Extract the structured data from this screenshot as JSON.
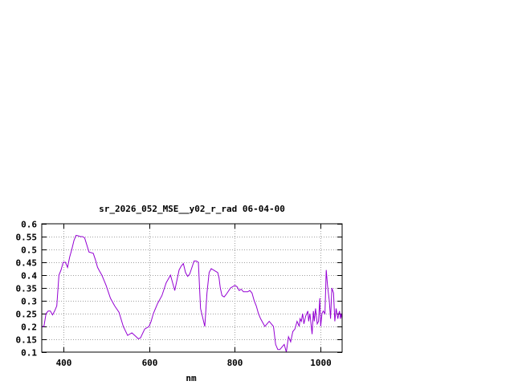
{
  "chart_data": {
    "type": "line",
    "title": "sr_2026_052_MSE__y02_r_rad 06-04-00",
    "xlabel": "nm",
    "ylabel": "",
    "xlim": [
      350,
      1050
    ],
    "ylim": [
      0.1,
      0.6
    ],
    "grid": true,
    "legend": "none",
    "line_color": "#9400d3",
    "x_ticks": [
      400,
      600,
      800,
      1000
    ],
    "x_tick_labels": [
      "400",
      "600",
      "800",
      "1000"
    ],
    "y_ticks": [
      0.1,
      0.15,
      0.2,
      0.25,
      0.3,
      0.35,
      0.4,
      0.45,
      0.5,
      0.55,
      0.6
    ],
    "y_tick_labels": [
      "0.1",
      "0.15",
      "0.2",
      "0.25",
      "0.3",
      "0.35",
      "0.4",
      "0.45",
      "0.5",
      "0.55",
      "0.6"
    ],
    "series": [
      {
        "x": [
          350,
          355,
          360,
          365,
          370,
          375,
          380,
          385,
          390,
          395,
          400,
          405,
          410,
          415,
          420,
          425,
          430,
          435,
          440,
          445,
          450,
          460,
          470,
          475,
          480,
          485,
          490,
          495,
          500,
          510,
          520,
          530,
          540,
          550,
          560,
          570,
          575,
          580,
          590,
          600,
          605,
          610,
          620,
          630,
          640,
          650,
          660,
          670,
          675,
          680,
          685,
          690,
          695,
          700,
          705,
          710,
          715,
          720,
          730,
          735,
          740,
          745,
          750,
          755,
          760,
          763,
          766,
          770,
          775,
          780,
          790,
          800,
          805,
          810,
          815,
          820,
          825,
          830,
          835,
          840,
          845,
          850,
          855,
          860,
          870,
          880,
          890,
          895,
          900,
          905,
          910,
          915,
          920,
          925,
          930,
          935,
          940,
          945,
          950,
          952,
          955,
          958,
          961,
          965,
          970,
          972,
          975,
          980,
          983,
          985,
          988,
          990,
          992,
          995,
          998,
          1000,
          1003,
          1006,
          1010,
          1013,
          1016,
          1020,
          1023,
          1026,
          1030,
          1033,
          1036,
          1040,
          1042,
          1044,
          1046,
          1048,
          1050
        ],
        "y": [
          0.2,
          0.2,
          0.25,
          0.26,
          0.26,
          0.245,
          0.26,
          0.28,
          0.4,
          0.42,
          0.45,
          0.45,
          0.43,
          0.47,
          0.5,
          0.535,
          0.555,
          0.553,
          0.55,
          0.55,
          0.545,
          0.49,
          0.485,
          0.46,
          0.43,
          0.415,
          0.4,
          0.38,
          0.36,
          0.31,
          0.28,
          0.255,
          0.2,
          0.165,
          0.175,
          0.16,
          0.152,
          0.155,
          0.19,
          0.2,
          0.22,
          0.25,
          0.29,
          0.32,
          0.37,
          0.4,
          0.34,
          0.42,
          0.435,
          0.445,
          0.41,
          0.395,
          0.405,
          0.43,
          0.455,
          0.455,
          0.45,
          0.27,
          0.2,
          0.33,
          0.41,
          0.425,
          0.42,
          0.415,
          0.41,
          0.39,
          0.35,
          0.32,
          0.315,
          0.325,
          0.35,
          0.36,
          0.355,
          0.34,
          0.345,
          0.335,
          0.335,
          0.335,
          0.34,
          0.33,
          0.3,
          0.28,
          0.25,
          0.23,
          0.2,
          0.22,
          0.2,
          0.13,
          0.11,
          0.11,
          0.12,
          0.13,
          0.1,
          0.16,
          0.14,
          0.18,
          0.19,
          0.22,
          0.2,
          0.23,
          0.22,
          0.25,
          0.21,
          0.24,
          0.26,
          0.22,
          0.25,
          0.17,
          0.26,
          0.22,
          0.27,
          0.24,
          0.21,
          0.22,
          0.31,
          0.2,
          0.25,
          0.26,
          0.25,
          0.42,
          0.36,
          0.3,
          0.23,
          0.35,
          0.33,
          0.22,
          0.27,
          0.23,
          0.25,
          0.26,
          0.23,
          0.25,
          0.23
        ]
      }
    ]
  }
}
